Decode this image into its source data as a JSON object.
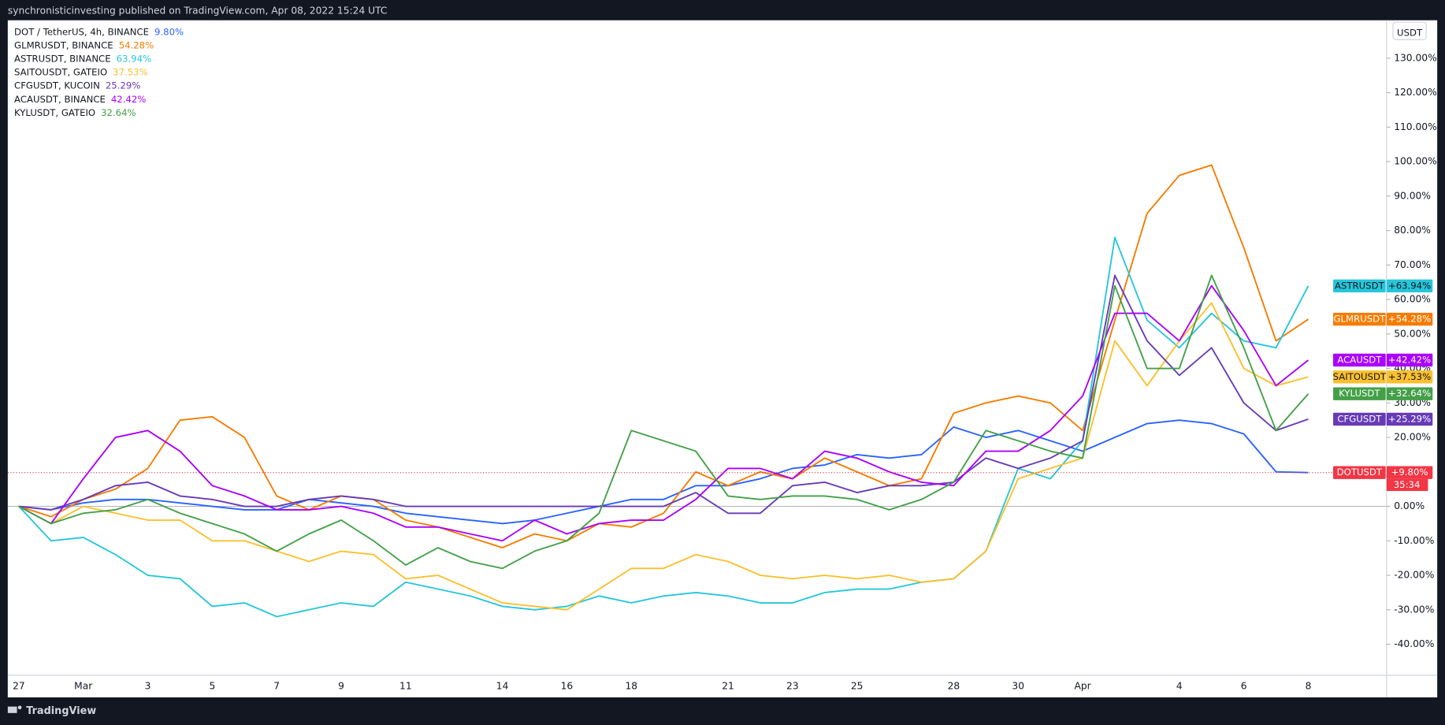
{
  "header": "synchronisticinvesting published on TradingView.com, Apr 08, 2022 15:24 UTC",
  "footer": "TradingView",
  "chart_data": {
    "type": "line",
    "axis_unit": "USDT",
    "countdown": "35:34",
    "grid": false,
    "categories": [
      "27",
      null,
      "Mar",
      null,
      "3",
      null,
      "5",
      null,
      "7",
      null,
      "9",
      null,
      "11",
      null,
      null,
      "14",
      null,
      "16",
      null,
      "18",
      null,
      null,
      "21",
      null,
      "23",
      null,
      "25",
      null,
      null,
      "28",
      null,
      "30",
      null,
      "Apr",
      null,
      null,
      "4",
      null,
      "6",
      null,
      "8"
    ],
    "ylim": [
      -49,
      141
    ],
    "yticks": [
      {
        "value": -40,
        "label": "-40.00%"
      },
      {
        "value": -30,
        "label": "-30.00%"
      },
      {
        "value": -20,
        "label": "-20.00%"
      },
      {
        "value": -10,
        "label": "-10.00%"
      },
      {
        "value": 0,
        "label": "0.00%"
      },
      {
        "value": 10,
        "label": "10.00%"
      },
      {
        "value": 20,
        "label": "20.00%"
      },
      {
        "value": 30,
        "label": "30.00%"
      },
      {
        "value": 40,
        "label": "40.00%"
      },
      {
        "value": 50,
        "label": "50.00%"
      },
      {
        "value": 60,
        "label": "60.00%"
      },
      {
        "value": 70,
        "label": "70.00%"
      },
      {
        "value": 80,
        "label": "80.00%"
      },
      {
        "value": 90,
        "label": "90.00%"
      },
      {
        "value": 100,
        "label": "100.00%"
      },
      {
        "value": 110,
        "label": "110.00%"
      },
      {
        "value": 120,
        "label": "120.00%"
      },
      {
        "value": 130,
        "label": "130.00%"
      }
    ],
    "series": [
      {
        "name": "DOT / TetherUS, 4h, BINANCE",
        "ticker": "DOTUSDT",
        "legend_value": "9.80%",
        "last_label": "+9.80%",
        "color": "#2962ff",
        "label_color": "#f23645",
        "values": [
          0,
          -1,
          1,
          2,
          2,
          1,
          0,
          -1,
          -1,
          2,
          1,
          0,
          -2,
          -3,
          -4,
          -5,
          -4,
          -2,
          0,
          2,
          2,
          6,
          6,
          8,
          11,
          12,
          15,
          14,
          15,
          23,
          20,
          22,
          19,
          16,
          20,
          24,
          25,
          24,
          21,
          10,
          9.8
        ]
      },
      {
        "name": "GLMRUSDT, BINANCE",
        "ticker": "GLMRUSDT",
        "legend_value": "54.28%",
        "last_label": "+54.28%",
        "color": "#f57c00",
        "label_color": "#f57c00",
        "values": [
          0,
          -3,
          2,
          5,
          11,
          25,
          26,
          20,
          3,
          -1,
          3,
          2,
          -4,
          -6,
          -9,
          -12,
          -8,
          -10,
          -5,
          -6,
          -2,
          10,
          6,
          10,
          8,
          14,
          10,
          6,
          8,
          27,
          30,
          32,
          30,
          22,
          54,
          85,
          96,
          99,
          75,
          48,
          54.28
        ]
      },
      {
        "name": "ASTRUSDT, BINANCE",
        "ticker": "ASTRUSDT",
        "legend_value": "63.94%",
        "last_label": "+63.94%",
        "color": "#26c6da",
        "label_color": "#26c6da",
        "values": [
          0,
          -10,
          -9,
          -14,
          -20,
          -21,
          -29,
          -28,
          -32,
          -30,
          -28,
          -29,
          -22,
          -24,
          -26,
          -29,
          -30,
          -29,
          -26,
          -28,
          -26,
          -25,
          -26,
          -28,
          -28,
          -25,
          -24,
          -24,
          -22,
          -21,
          -13,
          11,
          8,
          19,
          78,
          54,
          46,
          56,
          48,
          46,
          63.94
        ]
      },
      {
        "name": "SAITOUSDT, GATEIO",
        "ticker": "SAITOUSDT",
        "legend_value": "37.53%",
        "last_label": "+37.53%",
        "color": "#fbc02d",
        "label_color": "#fbc02d",
        "values": [
          0,
          -5,
          0,
          -2,
          -4,
          -4,
          -10,
          -10,
          -13,
          -16,
          -13,
          -14,
          -21,
          -20,
          -24,
          -28,
          -29,
          -30,
          -24,
          -18,
          -18,
          -14,
          -16,
          -20,
          -21,
          -20,
          -21,
          -20,
          -22,
          -21,
          -13,
          8,
          11,
          14,
          48,
          35,
          48,
          59,
          40,
          35,
          37.53
        ]
      },
      {
        "name": "CFGUSDT, KUCOIN",
        "ticker": "CFGUSDT",
        "legend_value": "25.29%",
        "last_label": "+25.29%",
        "color": "#673ab7",
        "label_color": "#673ab7",
        "values": [
          0,
          -1,
          2,
          6,
          7,
          3,
          2,
          0,
          0,
          2,
          3,
          2,
          0,
          0,
          0,
          0,
          0,
          0,
          0,
          0,
          0,
          4,
          -2,
          -2,
          6,
          7,
          4,
          6,
          6,
          7,
          14,
          11,
          14,
          19,
          67,
          48,
          38,
          46,
          30,
          22,
          25.29
        ]
      },
      {
        "name": "ACAUSDT, BINANCE",
        "ticker": "ACAUSDT",
        "legend_value": "42.42%",
        "last_label": "+42.42%",
        "color": "#aa00ff",
        "label_color": "#aa00ff",
        "values": [
          0,
          -5,
          8,
          20,
          22,
          16,
          6,
          3,
          -1,
          -1,
          0,
          -2,
          -6,
          -6,
          -8,
          -10,
          -4,
          -8,
          -5,
          -4,
          -4,
          2,
          11,
          11,
          8,
          16,
          14,
          10,
          7,
          6,
          16,
          16,
          22,
          32,
          56,
          56,
          48,
          64,
          51,
          35,
          42.42
        ]
      },
      {
        "name": "KYLUSDT, GATEIO",
        "ticker": "KYLUSDT",
        "legend_value": "32.64%",
        "last_label": "+32.64%",
        "color": "#43a047",
        "label_color": "#43a047",
        "values": [
          0,
          -5,
          -2,
          -1,
          2,
          -2,
          -5,
          -8,
          -13,
          -8,
          -4,
          -10,
          -17,
          -12,
          -16,
          -18,
          -13,
          -10,
          -2,
          22,
          19,
          16,
          3,
          2,
          3,
          3,
          2,
          -1,
          2,
          7,
          22,
          19,
          16,
          14,
          64,
          40,
          40,
          67,
          46,
          22,
          32.64
        ]
      }
    ]
  }
}
